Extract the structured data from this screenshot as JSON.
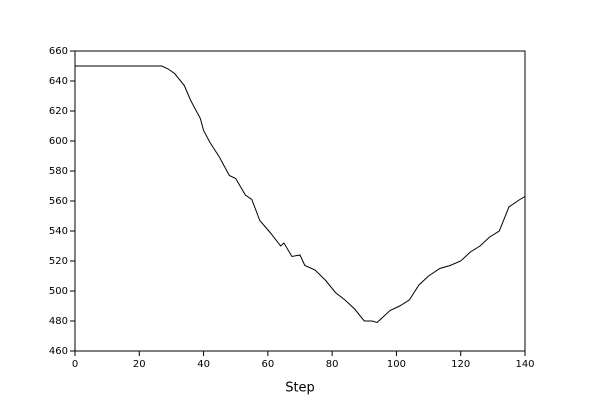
{
  "chart_data": {
    "type": "line",
    "x_label": "Step",
    "x": [
      0,
      10,
      20,
      27,
      29,
      31,
      34,
      36,
      39,
      40,
      42,
      45,
      48,
      50,
      53,
      55,
      57.5,
      60.7,
      64,
      65,
      67.5,
      70,
      71.5,
      74.7,
      78,
      81,
      84,
      87,
      90,
      92.4,
      94,
      98,
      101,
      104,
      107,
      110,
      113.5,
      116.7,
      120,
      123,
      126,
      129,
      132,
      135,
      138.4,
      140
    ],
    "series": [
      {
        "color": "#000000",
        "values": [
          650,
          650,
          650,
          650,
          648,
          645,
          637,
          627,
          615,
          607,
          599,
          589,
          577,
          575,
          564,
          561,
          547,
          539,
          530,
          532,
          523,
          524,
          517,
          514,
          507,
          499,
          494,
          488,
          480,
          480,
          479,
          487,
          490,
          494,
          504,
          510,
          515,
          517,
          520,
          526,
          530,
          536,
          540,
          556,
          561,
          563
        ]
      }
    ],
    "xlim": [
      0,
      140
    ],
    "xticks": [
      0,
      20,
      40,
      60,
      80,
      100,
      120,
      140
    ],
    "ylim": [
      460,
      660
    ],
    "yticks": [
      460,
      480,
      500,
      520,
      540,
      560,
      580,
      600,
      620,
      640,
      660
    ]
  }
}
